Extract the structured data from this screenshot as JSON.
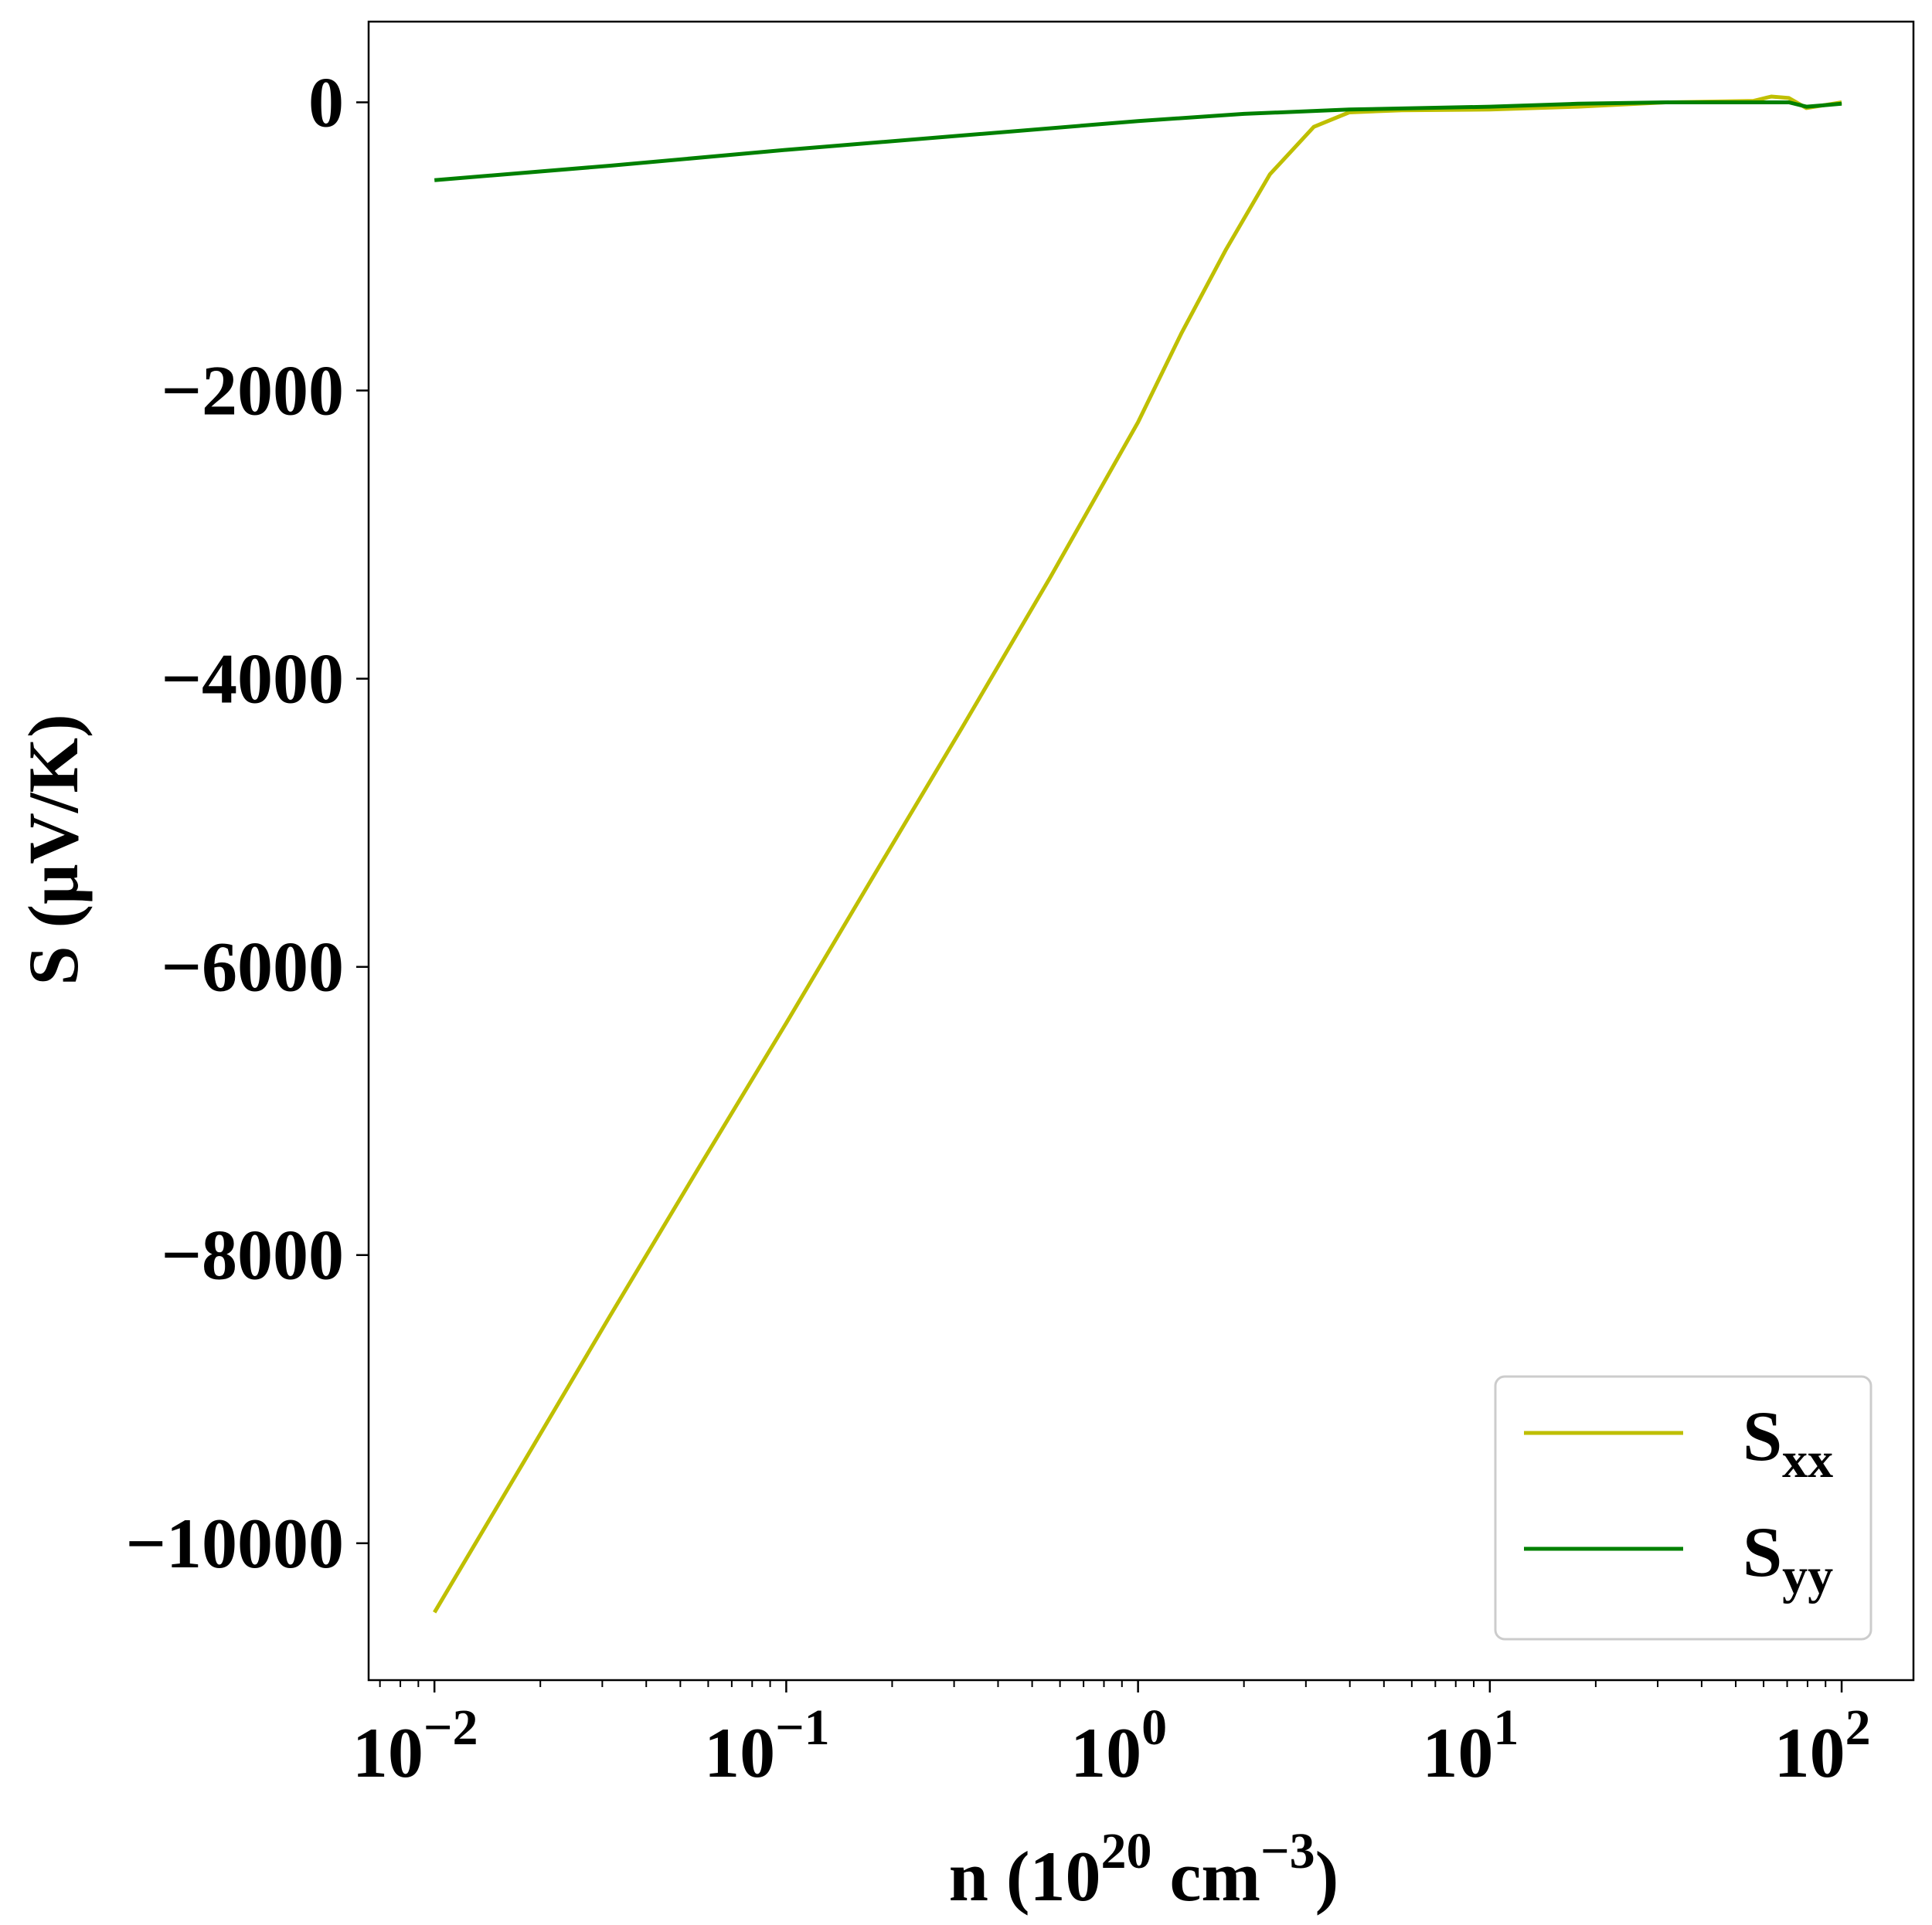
{
  "chart_data": {
    "type": "line",
    "title": "",
    "xlabel": {
      "main": "n (10",
      "sup1": "20",
      "mid": " cm",
      "sup2": "−3",
      "end": ")"
    },
    "ylabel": "S (μV/K)",
    "xscale": "log",
    "xlim": [
      0.0065,
      160
    ],
    "ylim": [
      -10950,
      560
    ],
    "x_ticks": [
      {
        "value": 0.01,
        "base": "10",
        "exp": "−2"
      },
      {
        "value": 0.1,
        "base": "10",
        "exp": "−1"
      },
      {
        "value": 1,
        "base": "10",
        "exp": "0"
      },
      {
        "value": 10,
        "base": "10",
        "exp": "1"
      },
      {
        "value": 100,
        "base": "10",
        "exp": "2"
      }
    ],
    "y_ticks": [
      {
        "value": 0,
        "label": "0"
      },
      {
        "value": -2000,
        "label": "−2000"
      },
      {
        "value": -4000,
        "label": "−4000"
      },
      {
        "value": -6000,
        "label": "−6000"
      },
      {
        "value": -8000,
        "label": "−8000"
      },
      {
        "value": -10000,
        "label": "−10000"
      }
    ],
    "legend": {
      "position": "lower-right"
    },
    "series": [
      {
        "name": "S",
        "subscript": "xx",
        "color": "#bfbf00",
        "points": [
          [
            0.01,
            -10480
          ],
          [
            0.0178,
            -9450
          ],
          [
            0.0316,
            -8420
          ],
          [
            0.0562,
            -7400
          ],
          [
            0.1,
            -6390
          ],
          [
            0.178,
            -5360
          ],
          [
            0.316,
            -4340
          ],
          [
            0.562,
            -3300
          ],
          [
            1.0,
            -2220
          ],
          [
            1.33,
            -1600
          ],
          [
            1.78,
            -1020
          ],
          [
            2.37,
            -500
          ],
          [
            3.16,
            -170
          ],
          [
            3.98,
            -70
          ],
          [
            5.62,
            -55
          ],
          [
            10,
            -50
          ],
          [
            17.8,
            -30
          ],
          [
            31.6,
            0
          ],
          [
            56.2,
            10
          ],
          [
            63.1,
            40
          ],
          [
            70.8,
            30
          ],
          [
            79.4,
            -40
          ],
          [
            89.1,
            -20
          ],
          [
            100,
            0
          ]
        ]
      },
      {
        "name": "S",
        "subscript": "yy",
        "color": "#008000",
        "points": [
          [
            0.01,
            -540
          ],
          [
            0.0316,
            -440
          ],
          [
            0.1,
            -330
          ],
          [
            0.316,
            -230
          ],
          [
            1.0,
            -130
          ],
          [
            2.0,
            -80
          ],
          [
            3.98,
            -50
          ],
          [
            10,
            -30
          ],
          [
            17.8,
            -10
          ],
          [
            31.6,
            0
          ],
          [
            56.2,
            0
          ],
          [
            70.8,
            0
          ],
          [
            79.4,
            -30
          ],
          [
            89.1,
            -20
          ],
          [
            100,
            -10
          ]
        ]
      }
    ]
  }
}
